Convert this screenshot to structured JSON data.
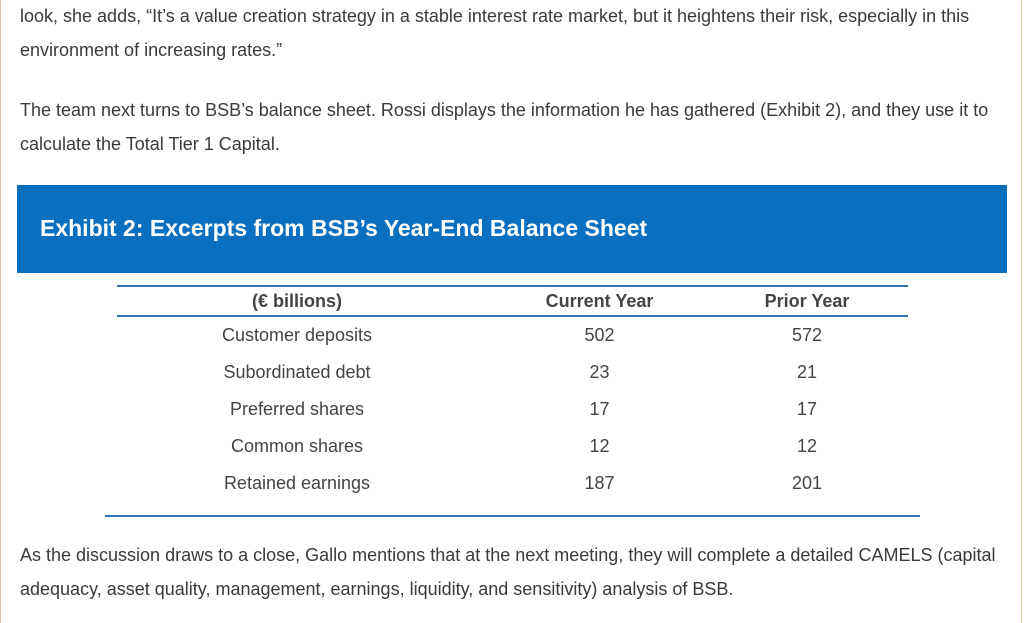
{
  "paragraphs": {
    "p1": "look, she adds, “It’s a value creation strategy in a stable interest rate market, but it heightens their risk, especially in this environment of increasing rates.”",
    "p2": "The team next turns to BSB’s balance sheet. Rossi displays the information he has gathered (Exhibit 2), and they use it to calculate the Total Tier 1 Capital.",
    "p3": "As the discussion draws to a close, Gallo mentions that at the next meeting, they will complete a detailed CAMELS (capital adequacy, asset quality, management, earnings, liquidity, and sensitivity) analysis of BSB."
  },
  "exhibit": {
    "title": "Exhibit 2: Excerpts from BSB’s Year-End Balance Sheet",
    "header_color": "#0a6fbe",
    "rule_color": "#2f75b5"
  },
  "table": {
    "headers": [
      "(€ billions)",
      "Current Year",
      "Prior Year"
    ],
    "rows": [
      [
        "Customer deposits",
        "502",
        "572"
      ],
      [
        "Subordinated debt",
        "23",
        "21"
      ],
      [
        "Preferred shares",
        "17",
        "17"
      ],
      [
        "Common shares",
        "12",
        "12"
      ],
      [
        "Retained earnings",
        "187",
        "201"
      ]
    ]
  }
}
